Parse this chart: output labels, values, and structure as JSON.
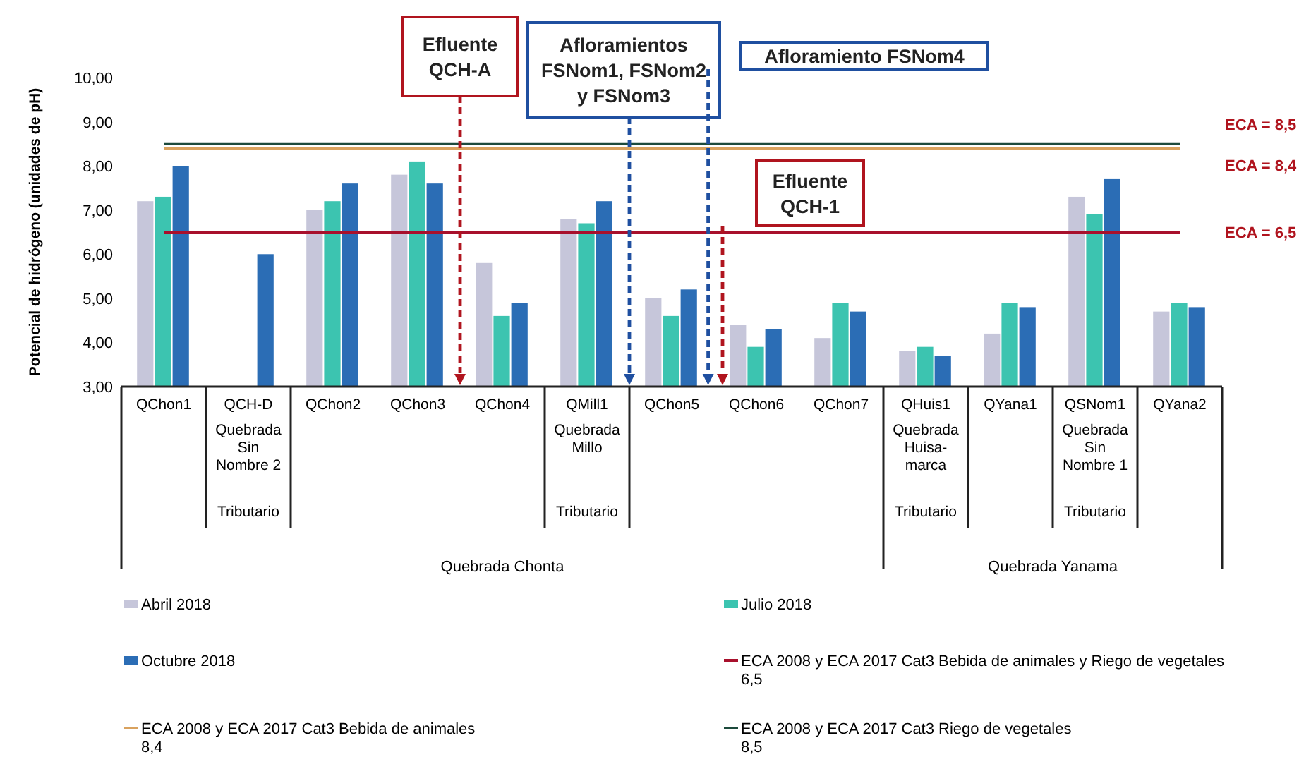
{
  "chart_data": {
    "type": "bar",
    "ylabel": "Potencial de hidrógeno (unidades de pH)",
    "categories": [
      "QChon1",
      "QCH-D\nQuebrada\nSin\nNombre 2\n\nTributario",
      "QChon2",
      "QChon3",
      "QChon4",
      "QMill1\nQuebrada\nMillo\n\n\nTributario",
      "QChon5",
      "QChon6",
      "QChon7",
      "QHuis1\nQuebrada\nHuisa-\nmarca\n\nTributario",
      "QYana1",
      "QSNom1\nQuebrada\nSin\nNombre 1\n\nTributario",
      "QYana2"
    ],
    "series": [
      {
        "name": "Abril 2018",
        "color": "#c6c6da",
        "values": [
          7.2,
          null,
          7.0,
          7.8,
          5.8,
          6.8,
          5.0,
          4.4,
          4.1,
          3.8,
          4.2,
          7.3,
          4.7
        ]
      },
      {
        "name": "Julio 2018",
        "color": "#3cc4b0",
        "values": [
          7.3,
          null,
          7.2,
          8.1,
          4.6,
          6.7,
          4.6,
          3.9,
          4.9,
          3.9,
          4.9,
          6.9,
          4.9
        ]
      },
      {
        "name": "Octubre 2018",
        "color": "#2b6db5",
        "values": [
          8.0,
          6.0,
          7.6,
          7.6,
          4.9,
          7.2,
          5.2,
          4.3,
          4.7,
          3.7,
          4.8,
          7.7,
          4.8
        ]
      },
      {
        "name": "ECA 2008 y ECA 2017 Cat3 Bebida de animales y Riego de vegetales\n6,5",
        "type": "line",
        "color": "#a8102c",
        "values": [
          6.5,
          6.5,
          6.5,
          6.5,
          6.5,
          6.5,
          6.5,
          6.5,
          6.5,
          6.5,
          6.5,
          6.5,
          6.5
        ]
      },
      {
        "name": "ECA 2008 y ECA 2017 Cat3 Bebida de animales\n8,4",
        "type": "line",
        "color": "#d9a25e",
        "values": [
          8.4,
          8.4,
          8.4,
          8.4,
          8.4,
          8.4,
          8.4,
          8.4,
          8.4,
          8.4,
          8.4,
          8.4,
          8.4
        ]
      },
      {
        "name": "ECA 2008 y ECA 2017 Cat3 Riego de vegetales\n8,5",
        "type": "line",
        "color": "#1c4a3c",
        "values": [
          8.5,
          8.5,
          8.5,
          8.5,
          8.5,
          8.5,
          8.5,
          8.5,
          8.5,
          8.5,
          8.5,
          8.5,
          8.5
        ]
      }
    ],
    "ylim": [
      3,
      10
    ],
    "yticks": [
      {
        "value": 3,
        "label": "3,00"
      },
      {
        "value": 4,
        "label": "4,00"
      },
      {
        "value": 5,
        "label": "5,00"
      },
      {
        "value": 6,
        "label": "6,00"
      },
      {
        "value": 7,
        "label": "7,00"
      },
      {
        "value": 8,
        "label": "8,00"
      },
      {
        "value": 9,
        "label": "9,00"
      },
      {
        "value": 10,
        "label": "10,00"
      }
    ],
    "legend": "bottom",
    "annotations": [
      "Efluente\nQCH-A",
      "Afloramientos\nFSNom1, FSNom2\ny FSNom3",
      "Afloramiento FSNom4",
      "Efluente\nQCH-1",
      "Quebrada Chonta",
      "Quebrada Yanama",
      "ECA = 8,5",
      "ECA = 8,4",
      "ECA = 6,5"
    ]
  }
}
